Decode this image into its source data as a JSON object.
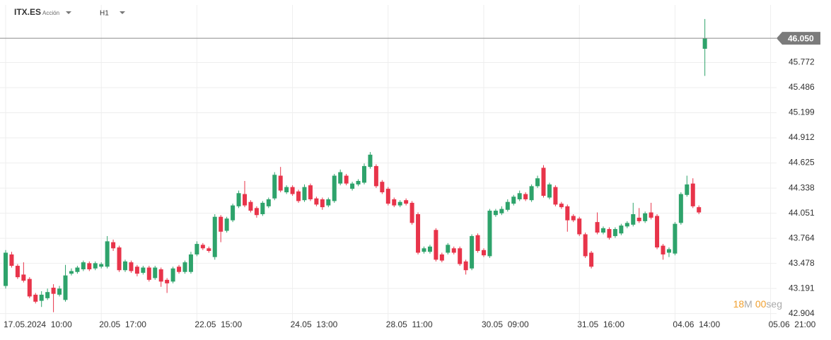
{
  "chart_data": {
    "type": "candlestick",
    "title": "ITX.ES",
    "subtitle": "Acción",
    "timeframe": "H1",
    "categories": [
      "17.05.2024  10:00",
      null,
      null,
      null,
      null,
      null,
      null,
      null,
      null,
      null,
      null,
      null,
      null,
      null,
      null,
      null,
      "20.05  17:00",
      null,
      null,
      null,
      null,
      null,
      null,
      null,
      null,
      null,
      null,
      null,
      null,
      null,
      null,
      null,
      "22.05  15:00",
      null,
      null,
      null,
      null,
      null,
      null,
      null,
      null,
      null,
      null,
      null,
      null,
      null,
      null,
      null,
      "24.05  13:00",
      null,
      null,
      null,
      null,
      null,
      null,
      null,
      null,
      null,
      null,
      null,
      null,
      null,
      null,
      null,
      "28.05  11:00",
      null,
      null,
      null,
      null,
      null,
      null,
      null,
      null,
      null,
      null,
      null,
      null,
      null,
      null,
      null,
      "30.05  09:00",
      null,
      null,
      null,
      null,
      null,
      null,
      null,
      null,
      null,
      null,
      null,
      null,
      null,
      null,
      null,
      "31.05  16:00",
      null,
      null,
      null,
      null,
      null,
      null,
      null,
      null,
      null,
      null,
      null,
      null,
      null,
      null,
      null,
      "04.06  14:00",
      null,
      null,
      null,
      null,
      null,
      null,
      null,
      null,
      null,
      null,
      null,
      null,
      null,
      null,
      null,
      "05.06  21:00"
    ],
    "open": [
      43.22,
      43.58,
      43.45,
      43.35,
      43.3,
      43.12,
      43.05,
      43.08,
      43.2,
      43.12,
      43.06,
      43.36,
      43.38,
      43.41,
      43.48,
      43.42,
      43.44,
      43.44,
      43.72,
      43.66,
      43.4,
      43.49,
      43.44,
      43.37,
      43.43,
      43.31,
      43.41,
      43.29,
      43.27,
      43.44,
      43.38,
      43.38,
      43.58,
      43.69,
      43.65,
      43.55,
      44.01,
      43.85,
      43.97,
      44.13,
      44.27,
      44.18,
      44.11,
      44.04,
      44.13,
      44.22,
      44.48,
      44.29,
      44.35,
      44.3,
      44.2,
      44.37,
      44.22,
      44.21,
      44.14,
      44.19,
      44.39,
      44.48,
      44.33,
      44.38,
      44.4,
      44.58,
      44.59,
      44.41,
      44.33,
      44.21,
      44.14,
      44.2,
      44.17,
      44.04,
      43.61,
      43.61,
      43.86,
      43.58,
      43.6,
      43.65,
      43.65,
      43.5,
      43.42,
      43.8,
      43.63,
      43.56,
      44.03,
      44.05,
      44.09,
      44.16,
      44.21,
      44.27,
      44.2,
      44.36,
      44.57,
      44.23,
      44.35,
      44.16,
      44.13,
      44.02,
      43.99,
      43.81,
      43.6,
      43.95,
      43.83,
      43.87,
      43.79,
      43.82,
      43.9,
      43.92,
      44.0,
      43.96,
      44.06,
      44.02,
      43.68,
      43.6,
      43.59,
      43.94,
      44.26,
      44.39,
      44.12,
      45.93,
      null,
      null,
      null,
      null,
      null,
      null,
      null,
      null,
      null,
      null,
      null
    ],
    "high": [
      43.63,
      43.61,
      43.47,
      43.49,
      43.32,
      43.14,
      43.16,
      43.19,
      43.24,
      43.22,
      43.46,
      43.42,
      43.45,
      43.51,
      43.5,
      43.5,
      43.49,
      43.79,
      43.75,
      43.68,
      43.52,
      43.51,
      43.46,
      43.45,
      43.45,
      43.45,
      43.43,
      43.31,
      43.44,
      43.46,
      43.51,
      43.61,
      43.73,
      43.71,
      43.67,
      44.04,
      44.03,
      44.01,
      44.16,
      44.31,
      44.42,
      44.2,
      44.13,
      44.19,
      44.23,
      44.52,
      44.58,
      44.37,
      44.37,
      44.32,
      44.38,
      44.39,
      44.24,
      44.23,
      44.23,
      44.5,
      44.55,
      44.5,
      44.41,
      44.44,
      44.62,
      44.75,
      44.61,
      44.43,
      44.35,
      44.23,
      44.2,
      44.22,
      44.19,
      44.06,
      43.67,
      43.69,
      43.88,
      43.6,
      43.71,
      43.67,
      43.67,
      43.52,
      43.81,
      43.82,
      43.65,
      44.1,
      44.1,
      44.13,
      44.21,
      44.26,
      44.31,
      44.29,
      44.38,
      44.48,
      44.6,
      44.4,
      44.37,
      44.18,
      44.15,
      44.04,
      44.01,
      43.83,
      43.62,
      44.06,
      43.9,
      43.89,
      43.89,
      43.93,
      43.96,
      44.17,
      44.11,
      44.07,
      44.17,
      44.04,
      43.7,
      43.66,
      43.95,
      44.29,
      44.48,
      44.45,
      44.14,
      46.27,
      null,
      null,
      null,
      null,
      null,
      null,
      null,
      null,
      null,
      null,
      null
    ],
    "low": [
      43.19,
      43.43,
      43.3,
      43.26,
      43.08,
      43.02,
      42.98,
      43.06,
      42.92,
      43.1,
      43.04,
      43.34,
      43.36,
      43.39,
      43.39,
      43.4,
      43.42,
      43.42,
      43.62,
      43.38,
      43.38,
      43.37,
      43.33,
      43.35,
      43.27,
      43.29,
      43.21,
      43.14,
      43.25,
      43.36,
      43.36,
      43.36,
      43.56,
      43.63,
      43.6,
      43.52,
      43.72,
      43.83,
      43.95,
      44.11,
      44.12,
      44.06,
      44.0,
      44.02,
      44.11,
      44.2,
      44.29,
      44.27,
      44.25,
      44.17,
      44.18,
      44.19,
      44.13,
      44.09,
      44.12,
      44.17,
      44.37,
      44.37,
      44.31,
      44.36,
      44.38,
      44.56,
      44.34,
      44.27,
      44.14,
      44.12,
      44.12,
      44.14,
      43.92,
      43.58,
      43.59,
      43.59,
      43.5,
      43.49,
      43.58,
      43.58,
      43.45,
      43.35,
      43.4,
      43.6,
      43.55,
      43.54,
      44.01,
      44.03,
      44.07,
      44.14,
      44.19,
      44.19,
      44.18,
      44.34,
      44.23,
      44.21,
      44.13,
      44.1,
      43.84,
      43.95,
      43.79,
      43.54,
      43.42,
      43.81,
      43.81,
      43.75,
      43.77,
      43.8,
      43.88,
      43.9,
      43.94,
      43.94,
      43.98,
      43.64,
      43.52,
      43.55,
      43.57,
      43.92,
      44.24,
      44.11,
      44.04,
      45.62,
      null,
      null,
      null,
      null,
      null,
      null,
      null,
      null,
      null,
      null,
      null
    ],
    "close": [
      43.6,
      43.45,
      43.32,
      43.28,
      43.1,
      43.04,
      43.12,
      43.15,
      43.13,
      43.19,
      43.34,
      43.39,
      43.43,
      43.49,
      43.41,
      43.48,
      43.47,
      43.73,
      43.65,
      43.4,
      43.5,
      43.39,
      43.36,
      43.43,
      43.29,
      43.43,
      43.27,
      43.25,
      43.42,
      43.38,
      43.49,
      43.58,
      43.7,
      43.65,
      43.62,
      44.01,
      43.84,
      43.99,
      44.14,
      44.28,
      44.14,
      44.08,
      44.03,
      44.17,
      44.21,
      44.49,
      44.31,
      44.35,
      44.27,
      44.19,
      44.35,
      44.21,
      44.15,
      44.12,
      44.21,
      44.48,
      44.52,
      44.39,
      44.39,
      44.42,
      44.59,
      44.72,
      44.36,
      44.29,
      44.16,
      44.14,
      44.18,
      44.16,
      43.94,
      43.6,
      43.65,
      43.67,
      43.52,
      43.51,
      43.69,
      43.6,
      43.47,
      43.4,
      43.79,
      43.62,
      43.57,
      44.08,
      44.08,
      44.1,
      44.18,
      44.24,
      44.28,
      44.21,
      44.36,
      44.45,
      44.25,
      44.38,
      44.15,
      44.12,
      43.97,
      43.97,
      43.81,
      43.56,
      43.44,
      43.83,
      43.88,
      43.77,
      43.87,
      43.91,
      43.94,
      44.04,
      43.96,
      44.05,
      44.0,
      43.66,
      43.58,
      43.64,
      43.93,
      44.27,
      44.38,
      44.13,
      44.06,
      46.05,
      null,
      null,
      null,
      null,
      null,
      null,
      null,
      null,
      null,
      null,
      null
    ],
    "up_color": "#2ea36b",
    "down_color": "#e8344a",
    "ylim": [
      42.78,
      46.35
    ],
    "yticks": [
      42.904,
      43.191,
      43.478,
      43.764,
      44.051,
      44.338,
      44.625,
      44.912,
      45.199,
      45.486,
      45.772
    ],
    "grid": true,
    "last_price": {
      "value": 46.05,
      "label": "46.050"
    },
    "countdown": {
      "minutes": "18",
      "minutes_unit": "M",
      "seconds": "00",
      "seconds_unit": "seg"
    }
  }
}
